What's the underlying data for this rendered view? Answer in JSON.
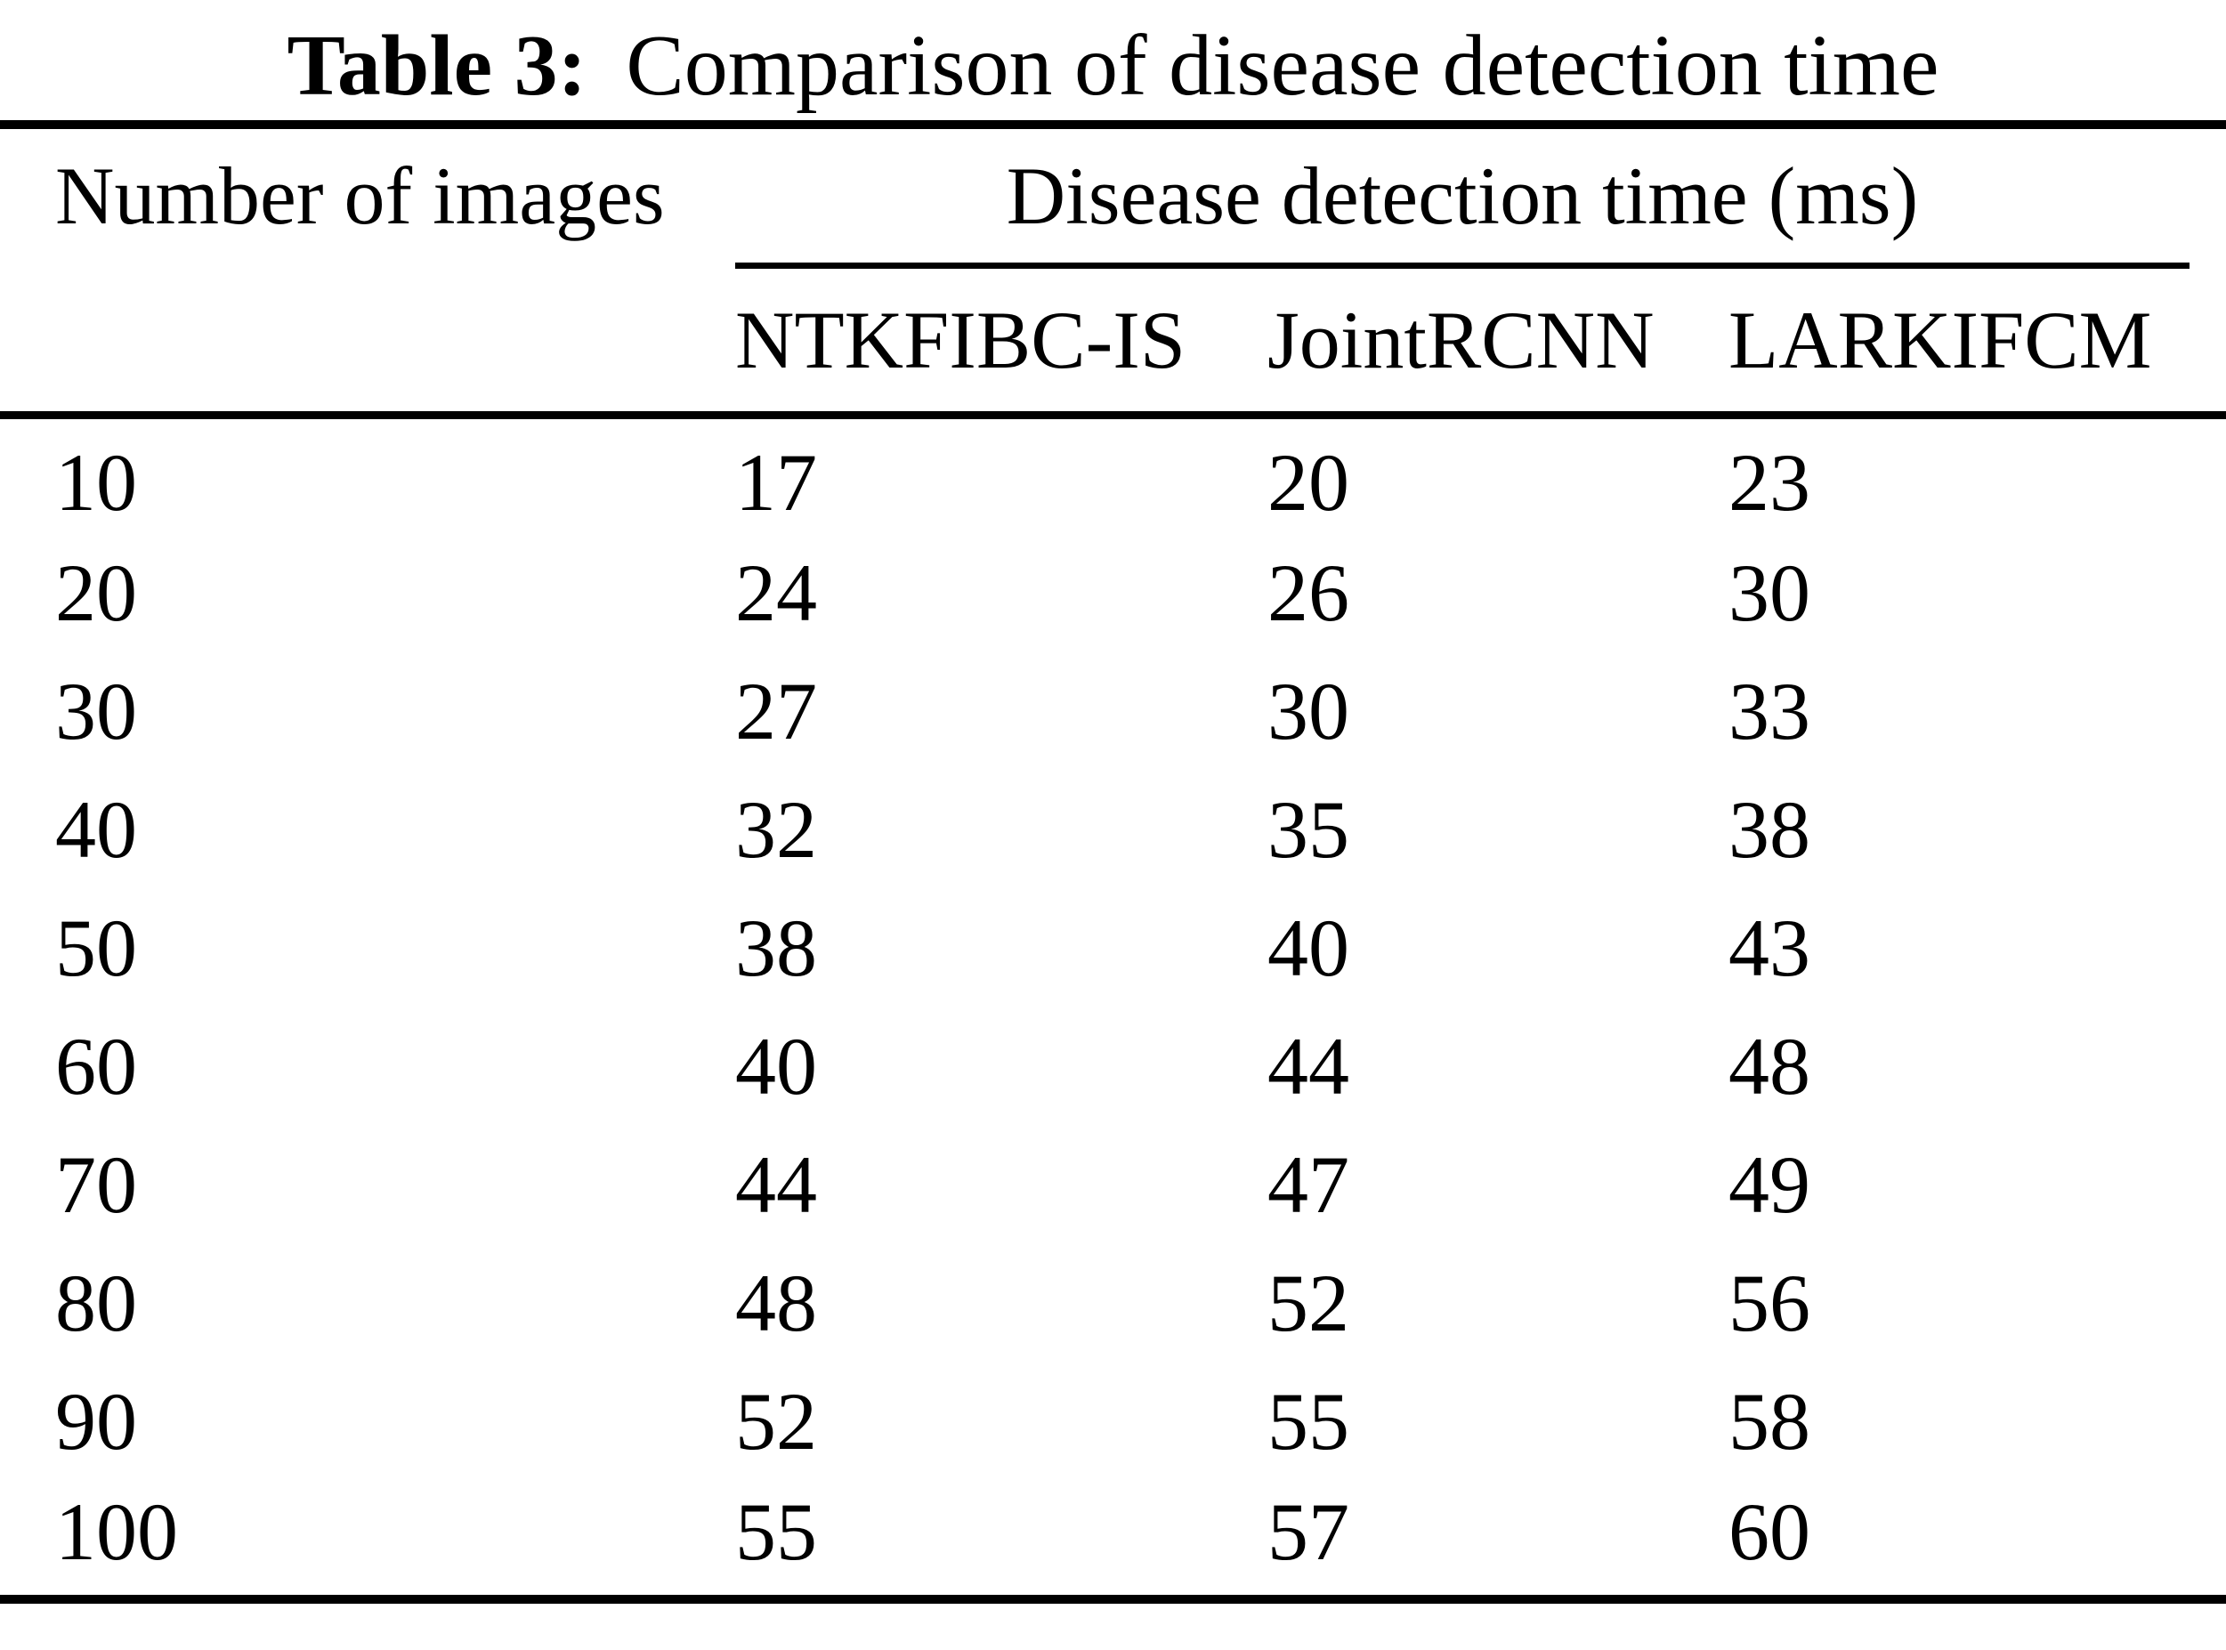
{
  "caption": {
    "label": "Table 3:",
    "text": "Comparison of disease detection time"
  },
  "headers": {
    "row_label": "Number of images",
    "group_label": "Disease detection time (ms)",
    "methods": [
      "NTKFIBC-IS",
      "JointRCNN",
      "LARKIFCM"
    ]
  },
  "rows": [
    {
      "images": "10",
      "ntkfibc_is": "17",
      "jointrcnn": "20",
      "larkifcm": "23"
    },
    {
      "images": "20",
      "ntkfibc_is": "24",
      "jointrcnn": "26",
      "larkifcm": "30"
    },
    {
      "images": "30",
      "ntkfibc_is": "27",
      "jointrcnn": "30",
      "larkifcm": "33"
    },
    {
      "images": "40",
      "ntkfibc_is": "32",
      "jointrcnn": "35",
      "larkifcm": "38"
    },
    {
      "images": "50",
      "ntkfibc_is": "38",
      "jointrcnn": "40",
      "larkifcm": "43"
    },
    {
      "images": "60",
      "ntkfibc_is": "40",
      "jointrcnn": "44",
      "larkifcm": "48"
    },
    {
      "images": "70",
      "ntkfibc_is": "44",
      "jointrcnn": "47",
      "larkifcm": "49"
    },
    {
      "images": "80",
      "ntkfibc_is": "48",
      "jointrcnn": "52",
      "larkifcm": "56"
    },
    {
      "images": "90",
      "ntkfibc_is": "52",
      "jointrcnn": "55",
      "larkifcm": "58"
    },
    {
      "images": "100",
      "ntkfibc_is": "55",
      "jointrcnn": "57",
      "larkifcm": "60"
    }
  ],
  "colors": {
    "text": "#000000",
    "background": "#ffffff",
    "rule": "#000000"
  },
  "chart_data": {
    "type": "table",
    "title": "Table 3: Comparison of disease detection time",
    "xlabel": "Number of images",
    "group_label": "Disease detection time (ms)",
    "categories": [
      10,
      20,
      30,
      40,
      50,
      60,
      70,
      80,
      90,
      100
    ],
    "series": [
      {
        "name": "NTKFIBC-IS",
        "values": [
          17,
          24,
          27,
          32,
          38,
          40,
          44,
          48,
          52,
          55
        ]
      },
      {
        "name": "JointRCNN",
        "values": [
          20,
          26,
          30,
          35,
          40,
          44,
          47,
          52,
          55,
          57
        ]
      },
      {
        "name": "LARKIFCM",
        "values": [
          23,
          30,
          33,
          38,
          43,
          48,
          49,
          56,
          58,
          60
        ]
      }
    ]
  }
}
